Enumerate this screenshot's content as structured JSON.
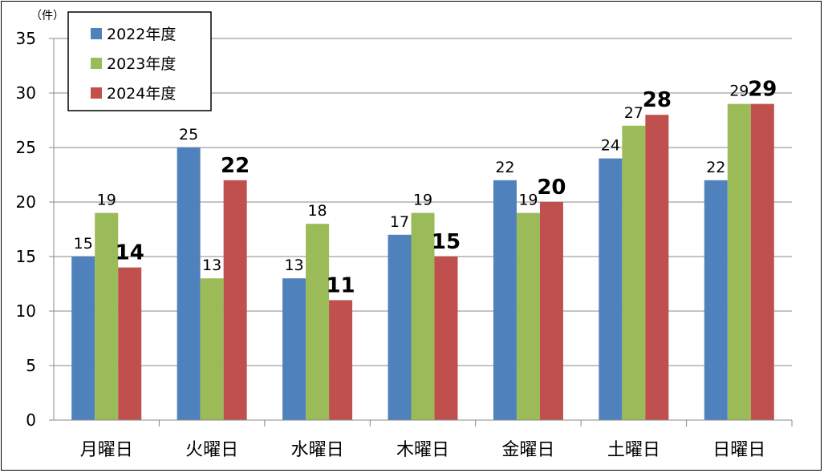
{
  "chart_data": {
    "type": "bar",
    "y_unit_label": "（件）",
    "categories": [
      "月曜日",
      "火曜日",
      "水曜日",
      "木曜日",
      "金曜日",
      "土曜日",
      "日曜日"
    ],
    "series": [
      {
        "name": "2022年度",
        "color": "#4F81BD",
        "values": [
          15,
          25,
          13,
          17,
          22,
          24,
          22
        ],
        "label_bold": false
      },
      {
        "name": "2023年度",
        "color": "#9BBB59",
        "values": [
          19,
          13,
          18,
          19,
          19,
          27,
          29
        ],
        "label_bold": false
      },
      {
        "name": "2024年度",
        "color": "#C0504D",
        "values": [
          14,
          22,
          11,
          15,
          20,
          28,
          29
        ],
        "label_bold": true
      }
    ],
    "ylim": [
      0,
      35
    ],
    "y_ticks": [
      0,
      5,
      10,
      15,
      20,
      25,
      30,
      35
    ],
    "grid": true,
    "legend_position": "top-left",
    "xlabel": "",
    "ylabel": ""
  }
}
